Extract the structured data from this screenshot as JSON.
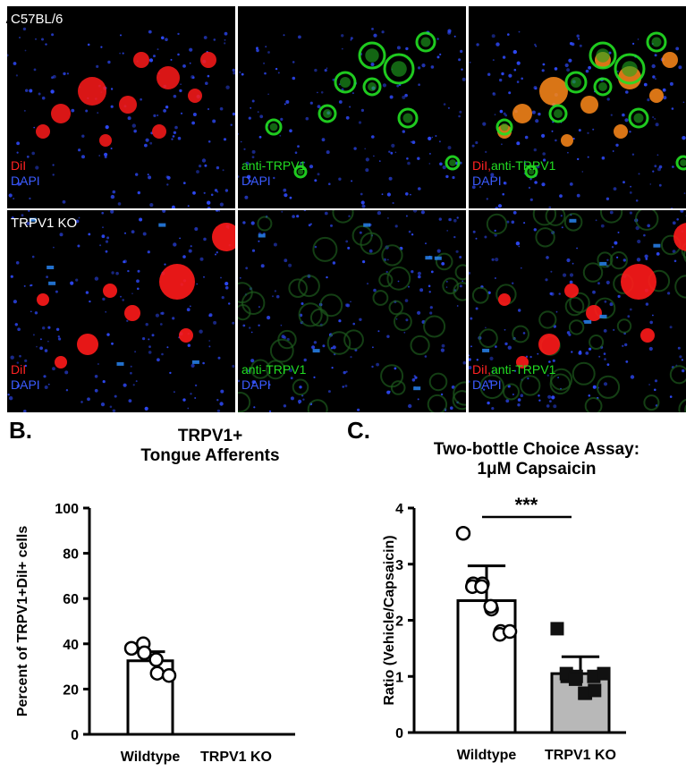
{
  "panels": {
    "a": {
      "letter": "A.",
      "rows": [
        {
          "strain": "C57BL/6",
          "tiles": [
            {
              "lines": [
                {
                  "parts": [
                    {
                      "text": "DiI",
                      "color": "#ff2222"
                    }
                  ]
                },
                {
                  "parts": [
                    {
                      "text": "DAPI",
                      "color": "#3b5bff"
                    }
                  ]
                }
              ]
            },
            {
              "lines": [
                {
                  "parts": [
                    {
                      "text": "anti-TRPV1",
                      "color": "#22dd22"
                    }
                  ]
                },
                {
                  "parts": [
                    {
                      "text": "DAPI",
                      "color": "#3b5bff"
                    }
                  ]
                }
              ]
            },
            {
              "lines": [
                {
                  "parts": [
                    {
                      "text": "DiI",
                      "color": "#ff2222"
                    },
                    {
                      "text": ",",
                      "color": "#ff2222"
                    },
                    {
                      "text": "anti-TRPV1",
                      "color": "#22dd22"
                    }
                  ]
                },
                {
                  "parts": [
                    {
                      "text": "DAPI",
                      "color": "#3b5bff"
                    }
                  ]
                }
              ]
            }
          ]
        },
        {
          "strain": "TRPV1 KO",
          "tiles": [
            {
              "lines": [
                {
                  "parts": [
                    {
                      "text": "DiI",
                      "color": "#ff2222"
                    }
                  ]
                },
                {
                  "parts": [
                    {
                      "text": "DAPI",
                      "color": "#3b5bff"
                    }
                  ]
                }
              ]
            },
            {
              "lines": [
                {
                  "parts": [
                    {
                      "text": "anti-TRPV1",
                      "color": "#22dd22"
                    }
                  ]
                },
                {
                  "parts": [
                    {
                      "text": "DAPI",
                      "color": "#3b5bff"
                    }
                  ]
                }
              ]
            },
            {
              "lines": [
                {
                  "parts": [
                    {
                      "text": "DiI",
                      "color": "#ff2222"
                    },
                    {
                      "text": ",",
                      "color": "#ff2222"
                    },
                    {
                      "text": "anti-TRPV1",
                      "color": "#22dd22"
                    }
                  ]
                },
                {
                  "parts": [
                    {
                      "text": "DAPI",
                      "color": "#3b5bff"
                    }
                  ]
                }
              ]
            }
          ]
        }
      ]
    },
    "b": {
      "letter": "B.",
      "title_line1": "TRPV1+",
      "title_line2": "Tongue  Afferents"
    },
    "c": {
      "letter": "C.",
      "title_line1": "Two-bottle Choice Assay:",
      "title_line2": "1μM Capsaicin"
    }
  },
  "chart_data": [
    {
      "type": "bar",
      "ylabel": "Percent of TRPV1+DiI+ cells",
      "ylim": [
        0,
        100
      ],
      "yticks": [
        0,
        20,
        40,
        60,
        80,
        100
      ],
      "categories": [
        "Wildtype",
        "TRPV1 KO"
      ],
      "values": [
        32.5,
        0
      ],
      "error": [
        4,
        0
      ],
      "bar_fill": [
        "#ffffff",
        "#ffffff"
      ],
      "points": [
        [
          38,
          40,
          36,
          33,
          27,
          26
        ],
        []
      ],
      "marker": [
        "circle",
        "circle"
      ],
      "significance": null
    },
    {
      "type": "bar",
      "ylabel": "Ratio (Vehicle/Capsaicin)",
      "ylim": [
        0,
        4
      ],
      "yticks": [
        0,
        1,
        2,
        3,
        4
      ],
      "categories": [
        "Wildtype",
        "TRPV1 KO"
      ],
      "values": [
        2.35,
        1.05
      ],
      "error": [
        0.62,
        0.3
      ],
      "bar_fill": [
        "#ffffff",
        "#b8b8b8"
      ],
      "points": [
        [
          3.55,
          2.65,
          2.6,
          2.65,
          2.6,
          2.2,
          2.25,
          1.8,
          1.75,
          1.8
        ],
        [
          1.85,
          1.0,
          1.05,
          1.0,
          0.95,
          0.7,
          0.7,
          0.75,
          1.0,
          1.05
        ]
      ],
      "marker": [
        "circle",
        "square"
      ],
      "significance": "***"
    }
  ]
}
